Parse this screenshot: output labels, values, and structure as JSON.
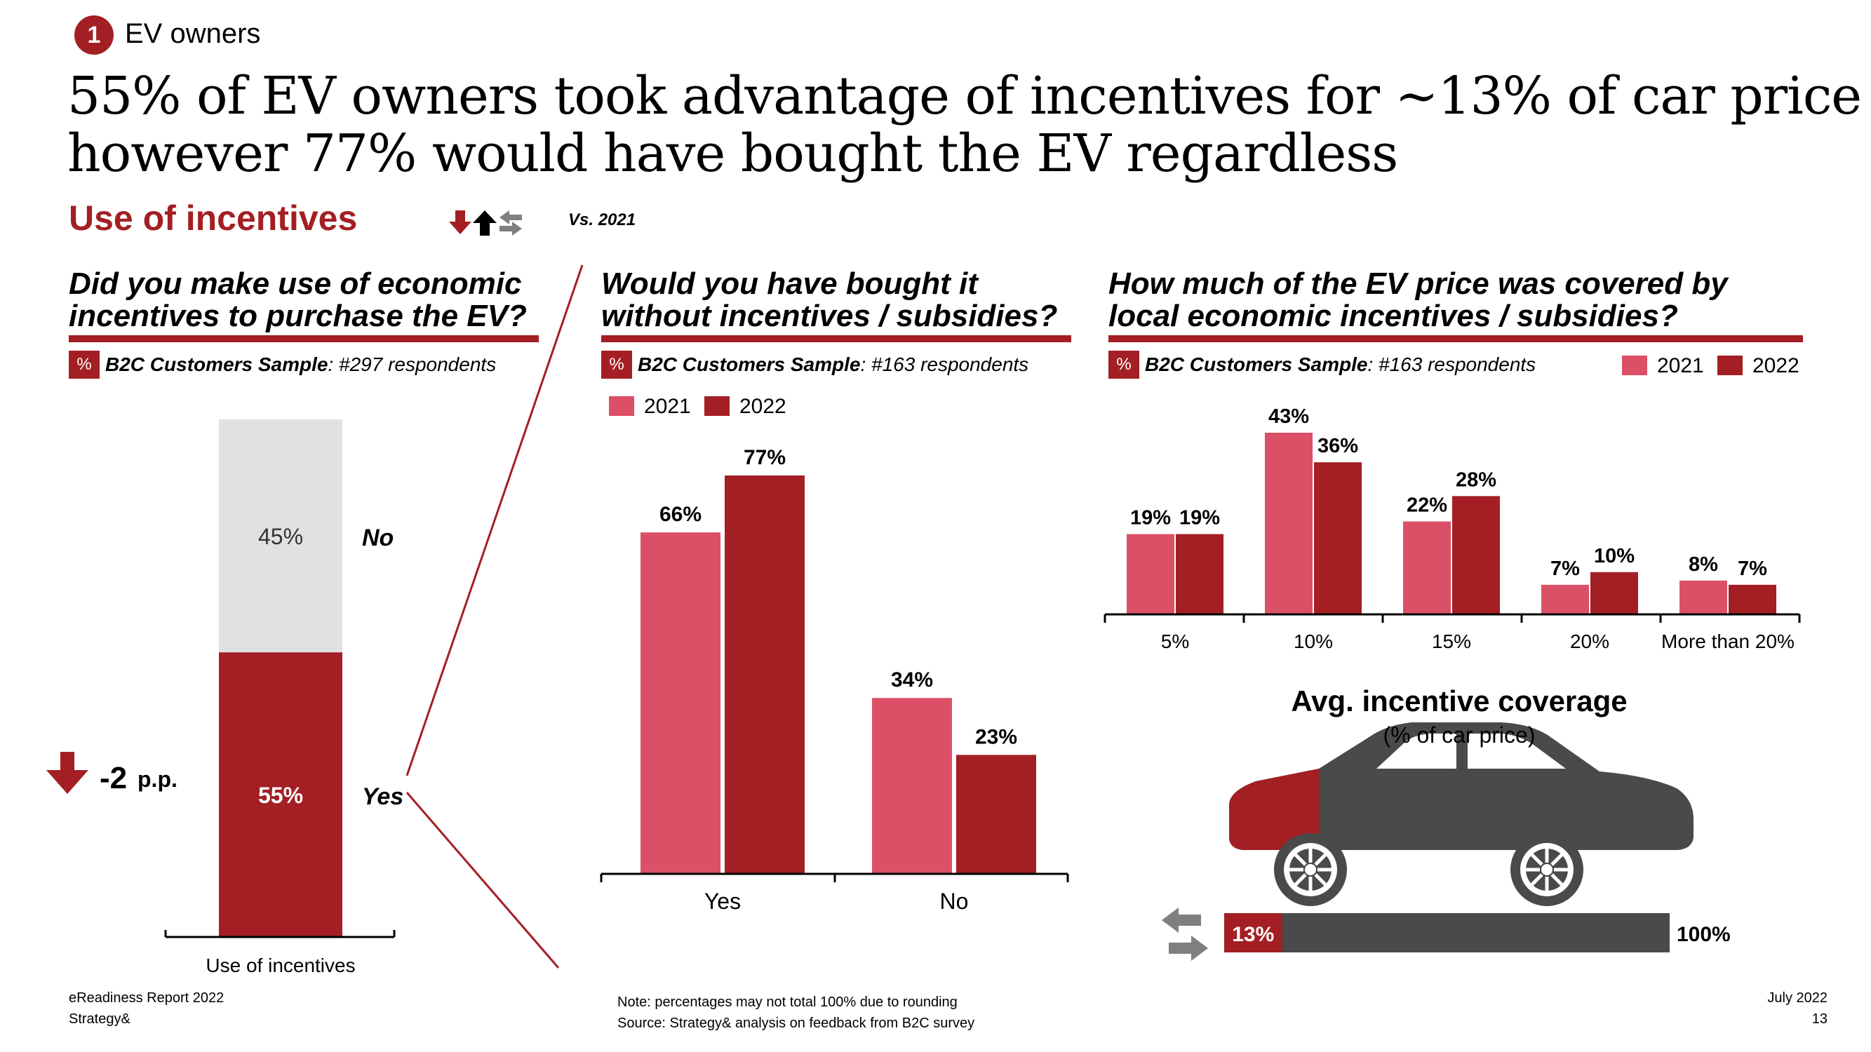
{
  "header": {
    "badge": "1",
    "section": "EV owners",
    "headline_line1": "55% of EV owners took advantage of incentives for ~13% of car price",
    "headline_line2": "however 77% would have bought the EV regardless",
    "subtitle": "Use of incentives",
    "vs_label": "Vs. 2021"
  },
  "colors": {
    "accent": "#a31f23",
    "light_red": "#dc5067",
    "dark_red": "#a31f23",
    "grey": "#e1e1e1",
    "car_grey": "#4a4a4a"
  },
  "panels": [
    {
      "question_l1": "Did you make use of economic",
      "question_l2": "incentives to purchase the EV?",
      "sample_pct": "%",
      "sample_bold": "B2C Customers Sample",
      "sample_rest": ": #297 respondents"
    },
    {
      "question_l1": "Would you have bought it",
      "question_l2": "without incentives / subsidies?",
      "sample_pct": "%",
      "sample_bold": "B2C Customers Sample",
      "sample_rest": ": #163 respondents"
    },
    {
      "question_l1": "How much of the EV price was covered by",
      "question_l2": "local economic incentives / subsidies?",
      "sample_pct": "%",
      "sample_bold": "B2C Customers Sample",
      "sample_rest": ": #163 respondents"
    }
  ],
  "legend": {
    "y2021": "2021",
    "y2022": "2022"
  },
  "change_indicator": {
    "value": "-2",
    "unit": "p.p.",
    "direction": "down"
  },
  "chart_data": [
    {
      "type": "bar",
      "stacked": true,
      "categories": [
        "Use of incentives"
      ],
      "series": [
        {
          "name": "Yes",
          "values": [
            55
          ],
          "labels": [
            "55%"
          ]
        },
        {
          "name": "No",
          "values": [
            45
          ],
          "labels": [
            "45%"
          ]
        }
      ],
      "ylim": [
        0,
        100
      ]
    },
    {
      "type": "bar",
      "categories": [
        "Yes",
        "No"
      ],
      "series": [
        {
          "name": "2021",
          "values": [
            66,
            34
          ],
          "labels": [
            "66%",
            "34%"
          ]
        },
        {
          "name": "2022",
          "values": [
            77,
            23
          ],
          "labels": [
            "77%",
            "23%"
          ]
        }
      ],
      "ylim": [
        0,
        100
      ]
    },
    {
      "type": "bar",
      "categories": [
        "5%",
        "10%",
        "15%",
        "20%",
        "More than 20%"
      ],
      "series": [
        {
          "name": "2021",
          "values": [
            19,
            43,
            22,
            7,
            8
          ],
          "labels": [
            "19%",
            "43%",
            "22%",
            "7%",
            "8%"
          ]
        },
        {
          "name": "2022",
          "values": [
            19,
            36,
            28,
            10,
            7
          ],
          "labels": [
            "19%",
            "36%",
            "28%",
            "10%",
            "7%"
          ]
        }
      ],
      "ylim": [
        0,
        50
      ]
    },
    {
      "type": "bar",
      "title": "Avg. incentive coverage",
      "subtitle": "(% of car price)",
      "categories": [
        "Avg. incentive coverage"
      ],
      "values": [
        13
      ],
      "value_label": "13%",
      "total_label": "100%",
      "ylim": [
        0,
        100
      ]
    }
  ],
  "footer": {
    "report": "eReadiness Report 2022",
    "company": "Strategy&",
    "note": "Note: percentages may not total 100% due to rounding",
    "source": "Source: Strategy& analysis on feedback from B2C survey",
    "date": "July 2022",
    "page": "13"
  }
}
